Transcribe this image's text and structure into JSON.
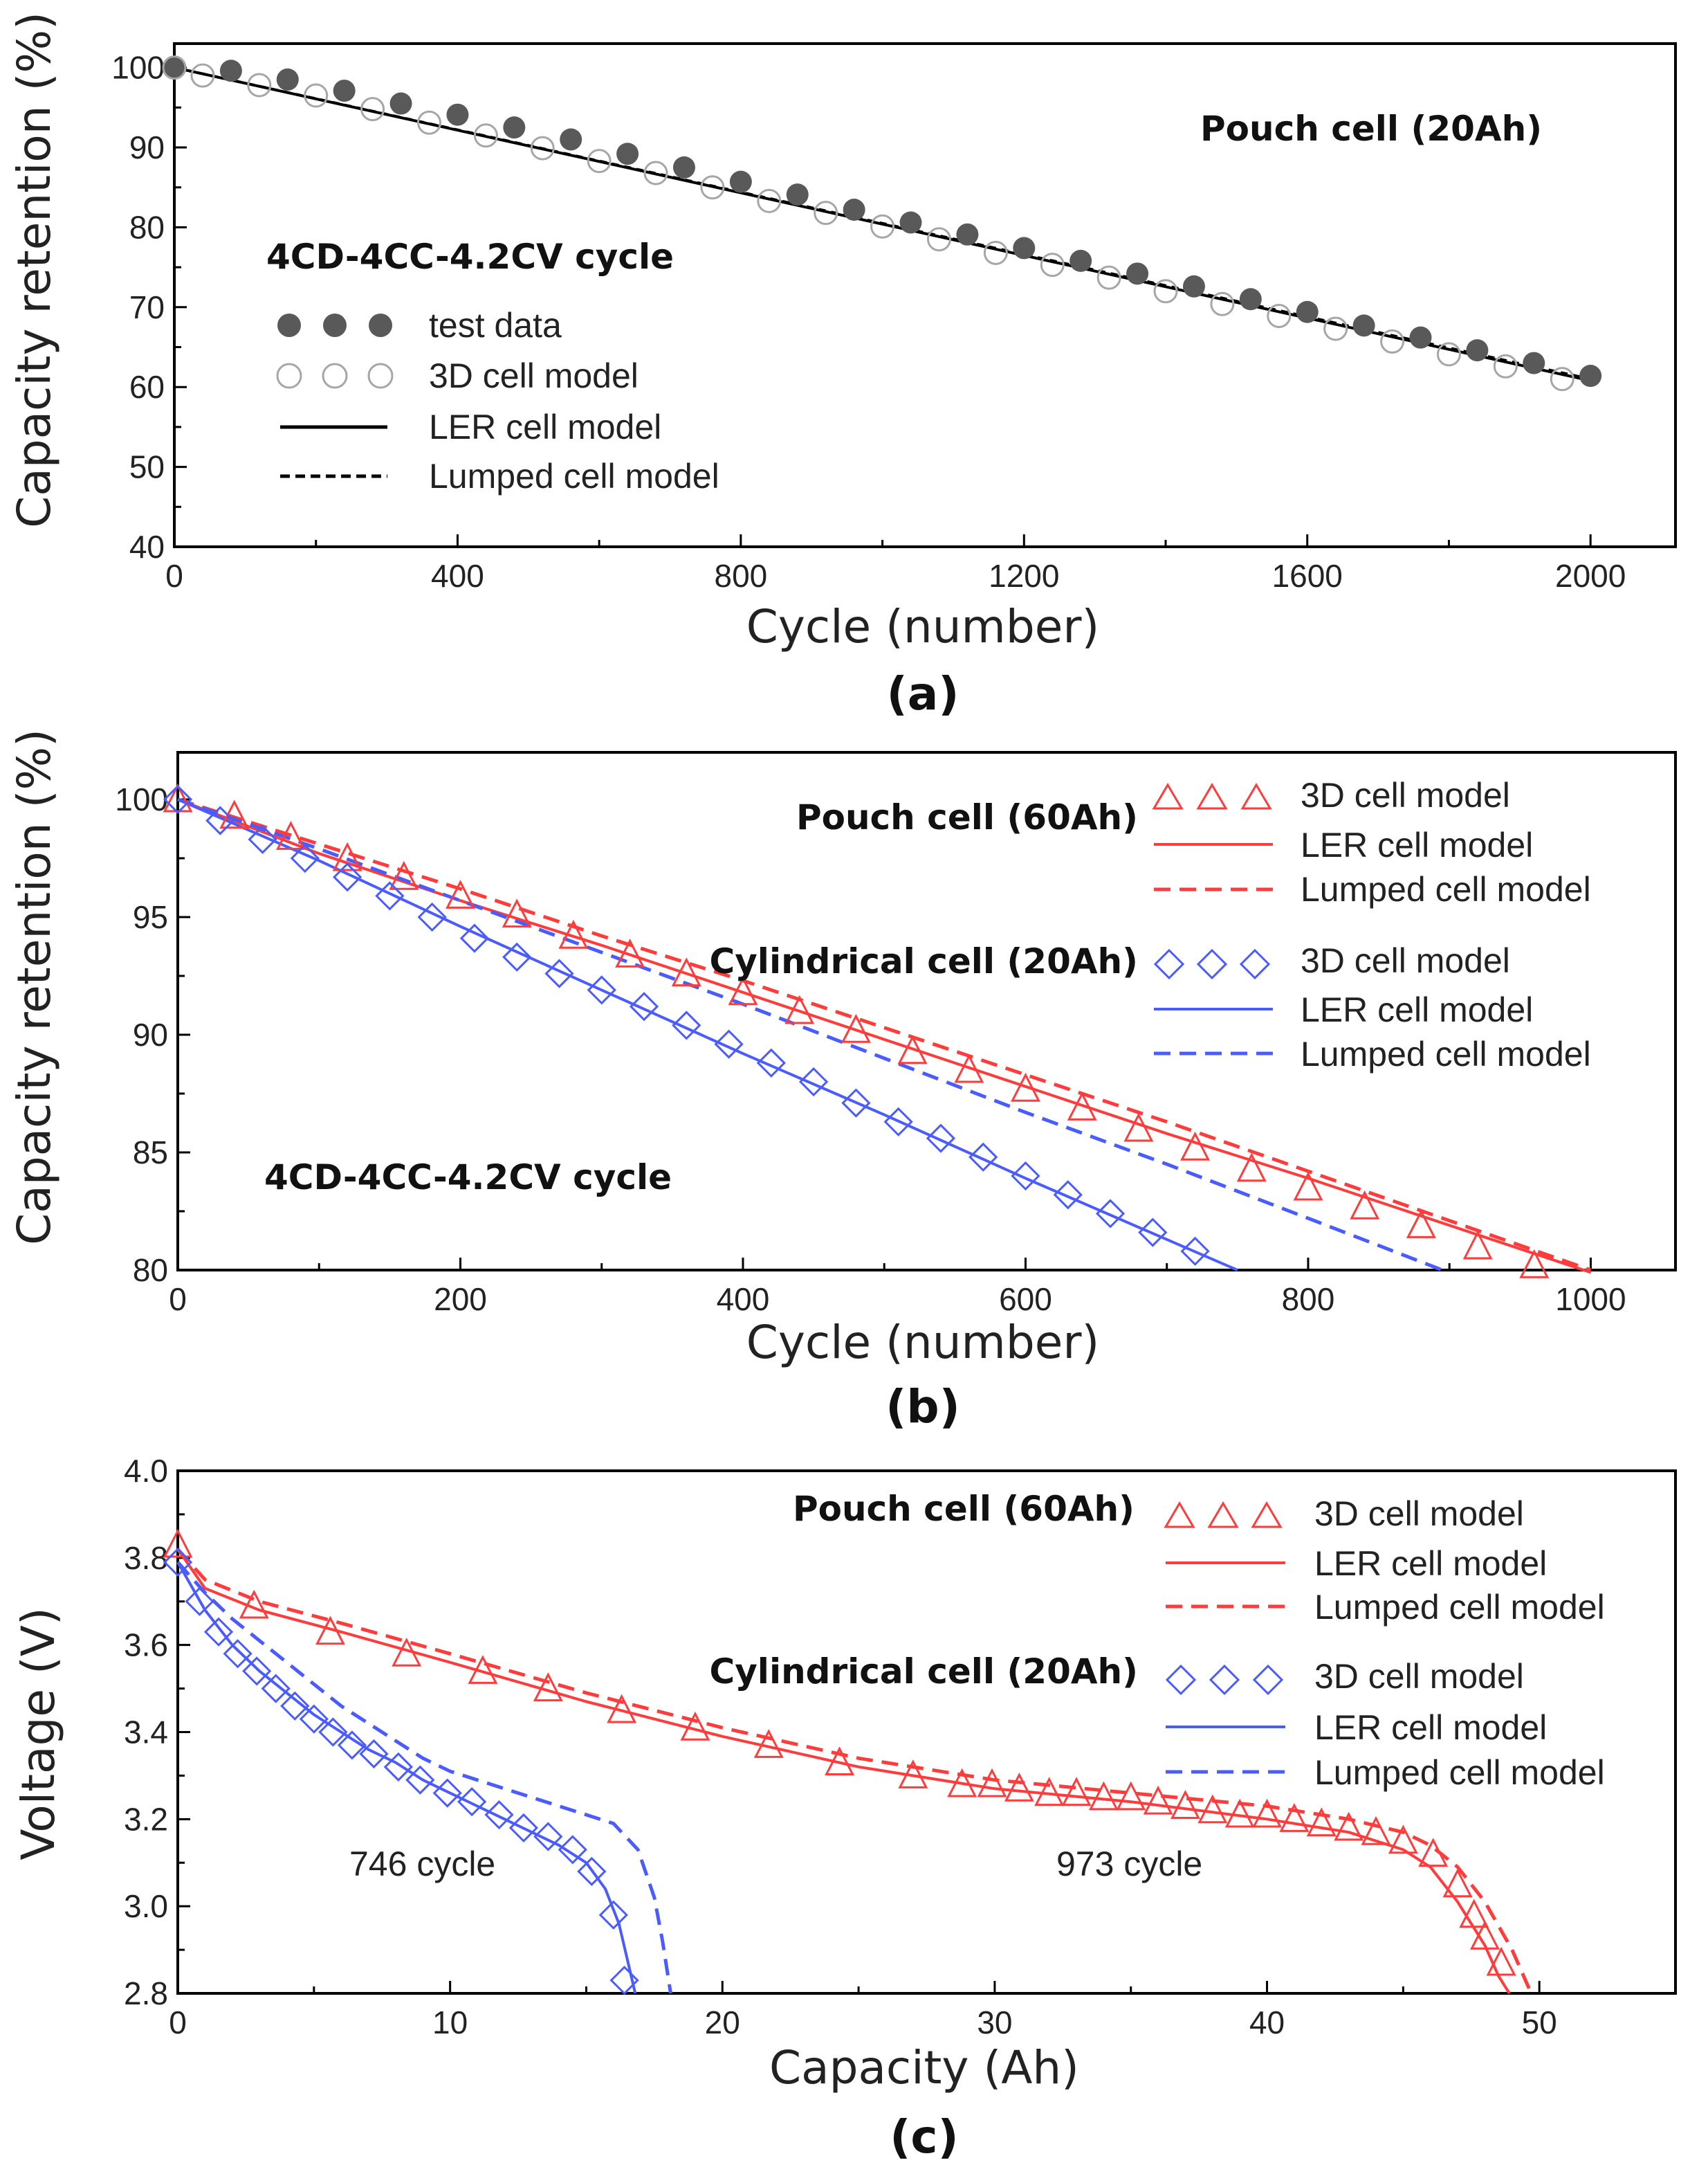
{
  "chart_data": [
    {
      "type": "scatter",
      "panel_label": "(a)",
      "xlabel": "Cycle (number)",
      "ylabel": "Capacity retention (%)",
      "xlim": [
        0,
        2120
      ],
      "ylim": [
        40,
        103
      ],
      "xticks": [
        0,
        400,
        800,
        1200,
        1600,
        2000
      ],
      "yticks": [
        40,
        50,
        60,
        70,
        80,
        90,
        100
      ],
      "title_text": "Pouch cell  (20Ah)",
      "protocol_text": "4CD-4CC-4.2CV cycle",
      "legend": [
        {
          "label": "test data",
          "style": "filled-circle"
        },
        {
          "label": "3D cell model",
          "style": "open-circle"
        },
        {
          "label": "LER cell model",
          "style": "solid-line"
        },
        {
          "label": "Lumped cell model",
          "style": "dashed-line"
        }
      ],
      "series": [
        {
          "name": "test data",
          "marker": "filled-circle",
          "color": "#595959",
          "x": [
            0,
            80,
            160,
            240,
            320,
            400,
            480,
            560,
            640,
            720,
            800,
            880,
            960,
            1040,
            1120,
            1200,
            1280,
            1360,
            1440,
            1520,
            1600,
            1680,
            1760,
            1840,
            1920,
            2000
          ],
          "y": [
            100.0,
            99.6,
            98.5,
            97.1,
            95.5,
            94.1,
            92.5,
            91.0,
            89.2,
            87.5,
            85.7,
            84.1,
            82.2,
            80.6,
            79.1,
            77.4,
            75.8,
            74.2,
            72.6,
            71.0,
            69.4,
            67.7,
            66.2,
            64.6,
            63.0,
            61.4
          ]
        },
        {
          "name": "3D cell model",
          "marker": "open-circle",
          "color": "#a6a6a6",
          "x": [
            0,
            40,
            120,
            200,
            280,
            360,
            440,
            520,
            600,
            680,
            760,
            840,
            920,
            1000,
            1080,
            1160,
            1240,
            1320,
            1400,
            1480,
            1560,
            1640,
            1720,
            1800,
            1880,
            1960
          ],
          "y": [
            100.0,
            99.0,
            97.8,
            96.5,
            94.8,
            93.1,
            91.5,
            89.9,
            88.3,
            86.8,
            85.0,
            83.3,
            81.8,
            80.1,
            78.5,
            76.8,
            75.3,
            73.7,
            72.0,
            70.4,
            68.9,
            67.3,
            65.7,
            64.1,
            62.6,
            61.0
          ]
        },
        {
          "name": "LER cell model",
          "line": "solid",
          "color": "#000000",
          "x": [
            0,
            2000
          ],
          "y": [
            100.0,
            60.8
          ]
        },
        {
          "name": "Lumped cell model",
          "line": "dashed",
          "color": "#000000",
          "x": [
            0,
            2000
          ],
          "y": [
            100.0,
            61.0
          ]
        }
      ]
    },
    {
      "type": "line",
      "panel_label": "(b)",
      "xlabel": "Cycle (number)",
      "ylabel": "Capacity retention (%)",
      "xlim": [
        0,
        1060
      ],
      "ylim": [
        80,
        102
      ],
      "xticks": [
        0,
        200,
        400,
        600,
        800,
        1000
      ],
      "yticks": [
        80,
        85,
        90,
        95,
        100
      ],
      "protocol_text": "4CD-4CC-4.2CV cycle",
      "group_labels": [
        "Pouch cell  (60Ah)",
        "Cylindrical cell  (20Ah)"
      ],
      "legend": [
        {
          "group": "Pouch cell  (60Ah)",
          "label": "3D cell model",
          "style": "triangle",
          "color": "#ff3b3b"
        },
        {
          "group": "Pouch cell  (60Ah)",
          "label": "LER cell model",
          "style": "solid-line",
          "color": "#ff3b3b"
        },
        {
          "group": "Pouch cell  (60Ah)",
          "label": "Lumped cell model",
          "style": "dashed-line",
          "color": "#ff3b3b"
        },
        {
          "group": "Cylindrical cell  (20Ah)",
          "label": "3D cell model",
          "style": "diamond",
          "color": "#4a5cff"
        },
        {
          "group": "Cylindrical cell  (20Ah)",
          "label": "LER cell model",
          "style": "solid-line",
          "color": "#4a5cff"
        },
        {
          "group": "Cylindrical cell  (20Ah)",
          "label": "Lumped cell model",
          "style": "dashed-line",
          "color": "#4a5cff"
        }
      ],
      "series": [
        {
          "name": "Pouch 3D cell model",
          "marker": "triangle",
          "color": "#ff3b3b",
          "x": [
            0,
            40,
            80,
            120,
            160,
            200,
            240,
            280,
            320,
            360,
            400,
            440,
            480,
            520,
            560,
            600,
            640,
            680,
            720,
            760,
            800,
            840,
            880,
            920,
            960
          ],
          "y": [
            100.0,
            99.3,
            98.4,
            97.5,
            96.7,
            95.9,
            95.1,
            94.2,
            93.4,
            92.6,
            91.8,
            91.0,
            90.2,
            89.3,
            88.5,
            87.7,
            86.9,
            86.0,
            85.2,
            84.3,
            83.5,
            82.7,
            81.9,
            81.0,
            80.2
          ]
        },
        {
          "name": "Pouch LER cell model",
          "line": "solid",
          "color": "#ff3b3b",
          "x": [
            0,
            100,
            200,
            300,
            400,
            500,
            600,
            700,
            800,
            900,
            1000
          ],
          "y": [
            100.0,
            97.7,
            95.7,
            93.8,
            91.8,
            89.8,
            87.8,
            85.8,
            83.9,
            81.9,
            79.9
          ]
        },
        {
          "name": "Pouch Lumped cell model",
          "line": "dashed",
          "color": "#ff3b3b",
          "x": [
            0,
            100,
            200,
            300,
            400,
            500,
            600,
            700,
            800,
            900,
            1000
          ],
          "y": [
            100.0,
            98.1,
            96.2,
            94.2,
            92.3,
            90.3,
            88.3,
            86.3,
            84.2,
            82.1,
            80.0
          ]
        },
        {
          "name": "Cylindrical 3D cell model",
          "marker": "diamond",
          "color": "#4a5cff",
          "x": [
            0,
            30,
            60,
            90,
            120,
            150,
            180,
            210,
            240,
            270,
            300,
            330,
            360,
            390,
            420,
            450,
            480,
            510,
            540,
            570,
            600,
            630,
            660,
            690,
            720
          ],
          "y": [
            100.0,
            99.1,
            98.3,
            97.5,
            96.7,
            95.9,
            95.0,
            94.1,
            93.3,
            92.6,
            91.9,
            91.2,
            90.4,
            89.6,
            88.8,
            88.0,
            87.1,
            86.3,
            85.6,
            84.8,
            84.0,
            83.2,
            82.4,
            81.6,
            80.8
          ]
        },
        {
          "name": "Cylindrical LER cell model",
          "line": "solid",
          "color": "#4a5cff",
          "x": [
            0,
            100,
            200,
            300,
            400,
            500,
            600,
            700,
            750
          ],
          "y": [
            100.0,
            97.4,
            94.6,
            91.9,
            89.2,
            86.6,
            83.9,
            81.3,
            80.0
          ]
        },
        {
          "name": "Cylindrical Lumped cell model",
          "line": "dashed",
          "color": "#4a5cff",
          "x": [
            0,
            100,
            200,
            300,
            400,
            500,
            600,
            700,
            800,
            895
          ],
          "y": [
            100.0,
            97.9,
            95.7,
            93.5,
            91.3,
            89.0,
            86.7,
            84.5,
            82.2,
            80.0
          ]
        }
      ]
    },
    {
      "type": "line",
      "panel_label": "(c)",
      "xlabel": "Capacity (Ah)",
      "ylabel": "Voltage (V)",
      "xlim": [
        0,
        55
      ],
      "ylim": [
        2.8,
        4.0
      ],
      "xticks": [
        0,
        10,
        20,
        30,
        40,
        50
      ],
      "yticks": [
        2.8,
        3.0,
        3.2,
        3.4,
        3.6,
        3.8,
        4.0
      ],
      "group_labels": [
        "Pouch cell  (60Ah)",
        "Cylindrical cell  (20Ah)"
      ],
      "annotations": [
        "746 cycle",
        "973 cycle"
      ],
      "legend": [
        {
          "group": "Pouch cell  (60Ah)",
          "label": "3D cell model",
          "style": "triangle",
          "color": "#ff3b3b"
        },
        {
          "group": "Pouch cell  (60Ah)",
          "label": "LER cell model",
          "style": "solid-line",
          "color": "#ff3b3b"
        },
        {
          "group": "Pouch cell  (60Ah)",
          "label": "Lumped cell model",
          "style": "dashed-line",
          "color": "#ff3b3b"
        },
        {
          "group": "Cylindrical cell  (20Ah)",
          "label": "3D cell model",
          "style": "diamond",
          "color": "#4a5cff"
        },
        {
          "group": "Cylindrical cell  (20Ah)",
          "label": "LER cell model",
          "style": "solid-line",
          "color": "#4a5cff"
        },
        {
          "group": "Cylindrical cell  (20Ah)",
          "label": "Lumped cell model",
          "style": "dashed-line",
          "color": "#4a5cff"
        }
      ],
      "series": [
        {
          "name": "Pouch 3D cell model",
          "marker": "triangle",
          "color": "#ff3b3b",
          "x": [
            0,
            2.8,
            5.6,
            8.4,
            11.2,
            13.6,
            16.3,
            19.0,
            21.7,
            24.3,
            27.0,
            28.8,
            29.9,
            30.9,
            32.0,
            33.0,
            34.0,
            35.0,
            36.0,
            37.0,
            38.0,
            39.0,
            40.0,
            41.0,
            42.0,
            43.0,
            44.0,
            45.0,
            46.1,
            47.0,
            47.6,
            48.0,
            48.6
          ],
          "y": [
            3.83,
            3.69,
            3.63,
            3.58,
            3.54,
            3.5,
            3.45,
            3.41,
            3.37,
            3.33,
            3.3,
            3.28,
            3.28,
            3.27,
            3.26,
            3.26,
            3.25,
            3.25,
            3.24,
            3.23,
            3.22,
            3.21,
            3.21,
            3.2,
            3.19,
            3.18,
            3.17,
            3.15,
            3.12,
            3.05,
            2.98,
            2.93,
            2.87
          ]
        },
        {
          "name": "Pouch LER cell model",
          "line": "solid",
          "color": "#ff3b3b",
          "x": [
            0,
            1,
            3,
            6,
            10,
            15,
            20,
            25,
            30,
            35,
            40,
            43,
            45,
            46,
            47,
            48,
            48.5,
            48.9
          ],
          "y": [
            3.82,
            3.73,
            3.68,
            3.63,
            3.56,
            3.47,
            3.39,
            3.32,
            3.27,
            3.24,
            3.2,
            3.17,
            3.13,
            3.09,
            3.01,
            2.91,
            2.84,
            2.8
          ]
        },
        {
          "name": "Pouch Lumped cell model",
          "line": "dashed",
          "color": "#ff3b3b",
          "x": [
            0,
            1,
            3,
            6,
            10,
            15,
            20,
            25,
            30,
            35,
            40,
            43,
            45,
            46,
            47,
            48,
            49,
            49.7
          ],
          "y": [
            3.82,
            3.75,
            3.7,
            3.65,
            3.58,
            3.49,
            3.41,
            3.34,
            3.29,
            3.26,
            3.23,
            3.2,
            3.17,
            3.14,
            3.09,
            3.01,
            2.9,
            2.8
          ]
        },
        {
          "name": "Cylindrical 3D cell model",
          "marker": "diamond",
          "color": "#4a5cff",
          "x": [
            0,
            0.8,
            1.5,
            2.2,
            2.9,
            3.6,
            4.3,
            5.0,
            5.7,
            6.4,
            7.2,
            8.1,
            8.9,
            9.9,
            10.8,
            11.8,
            12.7,
            13.6,
            14.5,
            15.2,
            16.0,
            16.4
          ],
          "y": [
            3.79,
            3.7,
            3.63,
            3.58,
            3.54,
            3.5,
            3.46,
            3.43,
            3.4,
            3.37,
            3.35,
            3.32,
            3.29,
            3.26,
            3.24,
            3.21,
            3.18,
            3.16,
            3.13,
            3.08,
            2.98,
            2.83
          ]
        },
        {
          "name": "Cylindrical LER cell model",
          "line": "solid",
          "color": "#4a5cff",
          "x": [
            0,
            1,
            2,
            3,
            4,
            5,
            6,
            7,
            8,
            9,
            10,
            11,
            12,
            13,
            14,
            15,
            15.7,
            16.2,
            16.5,
            16.8
          ],
          "y": [
            3.79,
            3.68,
            3.6,
            3.54,
            3.49,
            3.44,
            3.4,
            3.36,
            3.33,
            3.29,
            3.26,
            3.23,
            3.2,
            3.17,
            3.14,
            3.1,
            3.04,
            2.96,
            2.88,
            2.8
          ]
        },
        {
          "name": "Cylindrical Lumped cell model",
          "line": "dashed",
          "color": "#4a5cff",
          "x": [
            0,
            1,
            2,
            3,
            4,
            5,
            6,
            7,
            8,
            9,
            10,
            11,
            12,
            13,
            14,
            15,
            16,
            16.9,
            17.5,
            17.8,
            18.1
          ],
          "y": [
            3.79,
            3.72,
            3.66,
            3.61,
            3.56,
            3.51,
            3.46,
            3.42,
            3.38,
            3.34,
            3.31,
            3.29,
            3.27,
            3.25,
            3.23,
            3.21,
            3.19,
            3.13,
            3.02,
            2.92,
            2.8
          ]
        }
      ]
    }
  ]
}
